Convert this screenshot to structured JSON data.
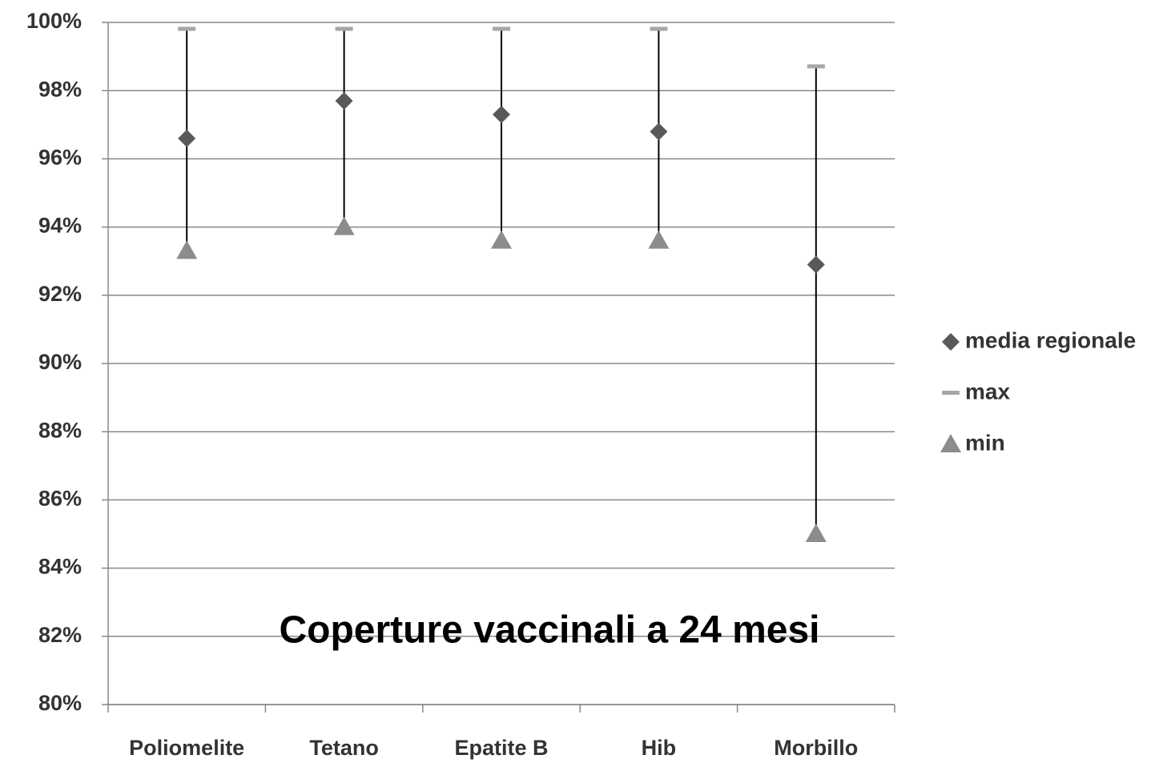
{
  "chart_data": {
    "type": "stock",
    "title": "Coperture vaccinali a 24 mesi",
    "categories": [
      "Poliomelite",
      "Tetano",
      "Epatite B",
      "Hib",
      "Morbillo"
    ],
    "series": [
      {
        "name": "media regionale",
        "color": "#595959",
        "marker": "diamond",
        "values": [
          96.6,
          97.7,
          97.3,
          96.8,
          92.9
        ]
      },
      {
        "name": "max",
        "color": "#a6a6a6",
        "marker": "dash",
        "values": [
          99.8,
          99.8,
          99.8,
          99.8,
          98.7
        ]
      },
      {
        "name": "min",
        "color": "#8c8c8c",
        "marker": "triangle",
        "values": [
          93.3,
          94.0,
          93.6,
          93.6,
          85.0
        ]
      }
    ],
    "ylim": [
      80,
      100
    ],
    "yticks": [
      {
        "value": 80,
        "label": "80%"
      },
      {
        "value": 82,
        "label": "82%"
      },
      {
        "value": 84,
        "label": "84%"
      },
      {
        "value": 86,
        "label": "86%"
      },
      {
        "value": 88,
        "label": "88%"
      },
      {
        "value": 90,
        "label": "90%"
      },
      {
        "value": 92,
        "label": "92%"
      },
      {
        "value": 94,
        "label": "94%"
      },
      {
        "value": 96,
        "label": "96%"
      },
      {
        "value": 98,
        "label": "98%"
      },
      {
        "value": 100,
        "label": "100%"
      }
    ],
    "grid": true,
    "hilo_lines": true,
    "legend": "right"
  }
}
